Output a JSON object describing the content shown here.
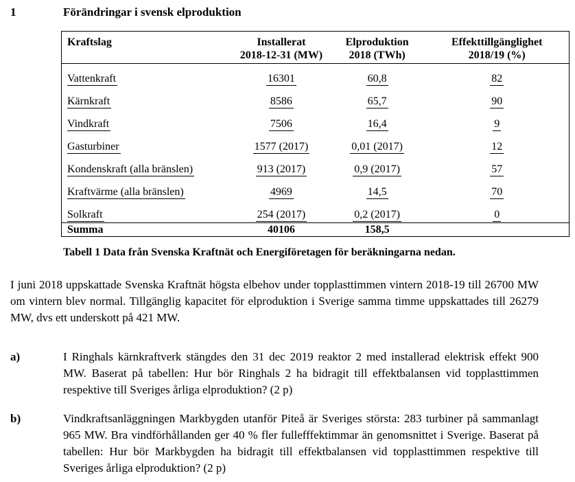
{
  "section": {
    "number": "1",
    "title": "Förändringar i svensk elproduktion"
  },
  "table": {
    "headers": [
      "Kraftslag",
      "Installerat 2018-12-31 (MW)",
      "Elproduktion 2018 (TWh)",
      "Effekttillgänglighet 2018/19 (%)"
    ],
    "header_lines": [
      [
        "Kraftslag"
      ],
      [
        "Installerat",
        "2018-12-31 (MW)"
      ],
      [
        "Elproduktion",
        "2018 (TWh)"
      ],
      [
        "Effekttillgänglighet",
        "2018/19 (%)"
      ]
    ],
    "rows": [
      [
        "Vattenkraft",
        "16301",
        "60,8",
        "82"
      ],
      [
        "Kärnkraft",
        "8586",
        "65,7",
        "90"
      ],
      [
        "Vindkraft",
        "7506",
        "16,4",
        "9"
      ],
      [
        "Gasturbiner",
        "1577 (2017)",
        "0,01 (2017)",
        "12"
      ],
      [
        "Kondenskraft (alla bränslen)",
        "913 (2017)",
        "0,9 (2017)",
        "57"
      ],
      [
        "Kraftvärme (alla bränslen)",
        "4969",
        "14,5",
        "70"
      ],
      [
        "Solkraft",
        "254 (2017)",
        "0,2 (2017)",
        "0"
      ]
    ],
    "sum_row": [
      "Summa",
      "40106",
      "158,5",
      ""
    ]
  },
  "caption": "Tabell 1 Data från Svenska Kraftnät och Energiföretagen för beräkningarna nedan.",
  "intro": "I juni 2018 uppskattade Svenska Kraftnät högsta elbehov under topplasttimmen vintern 2018-19 till 26700 MW om vintern blev normal. Tillgänglig kapacitet för elproduktion i Sverige samma timme uppskattades till 26279 MW, dvs ett underskott på 421 MW.",
  "questions": [
    {
      "label": "a)",
      "text": "I Ringhals kärnkraftverk stängdes den 31 dec 2019 reaktor 2 med installerad elektrisk effekt 900 MW. Baserat på tabellen: Hur bör Ringhals 2 ha bidragit till effektbalansen vid topplasttimmen respektive till Sveriges årliga elproduktion? (2 p)"
    },
    {
      "label": "b)",
      "text": "Vindkraftsanläggningen Markbygden utanför Piteå är Sveriges största: 283 turbiner på sammanlagt 965 MW. Bra vindförhållanden ger 40 % fler fullefffektimmar än genomsnittet i Sverige. Baserat på tabellen: Hur bör Markbygden ha bidragit till effektbalansen vid topplasttimmen respektive till Sveriges årliga elproduktion? (2 p)"
    }
  ]
}
